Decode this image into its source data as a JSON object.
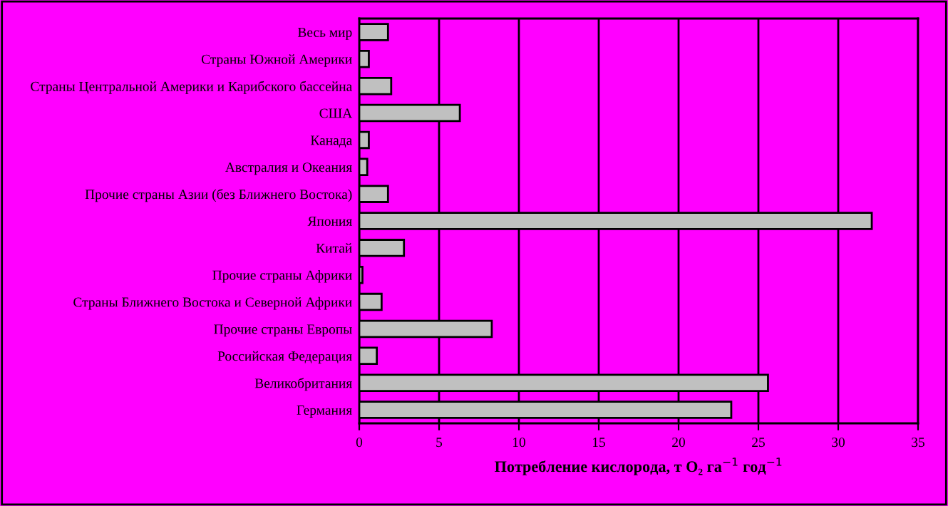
{
  "chart_data": {
    "type": "bar",
    "orientation": "horizontal",
    "xlabel": "Потребление кислорода, т O₂ га$^{−1}$ год$^{−1}$",
    "categories": [
      "Весь мир",
      "Страны Южной Америки",
      "Страны Центральной Америки и Карибского бассейна",
      "США",
      "Канада",
      "Австралия и Океания",
      "Прочие страны Азии (без Ближнего Востока)",
      "Япония",
      "Китай",
      "Прочие страны Африки",
      "Страны Ближнего Востока и Северной Африки",
      "Прочие страны Европы",
      "Российская Федерация",
      "Великобритания",
      "Германия"
    ],
    "values": [
      1.8,
      0.6,
      2.0,
      6.3,
      0.6,
      0.5,
      1.8,
      32.1,
      2.8,
      0.2,
      1.4,
      8.3,
      1.1,
      25.6,
      23.3
    ],
    "color": "#c0c0c0",
    "xlim": [
      0,
      35
    ],
    "xticks": [
      0,
      5,
      10,
      15,
      20,
      25,
      30,
      35
    ],
    "grid": "x"
  }
}
